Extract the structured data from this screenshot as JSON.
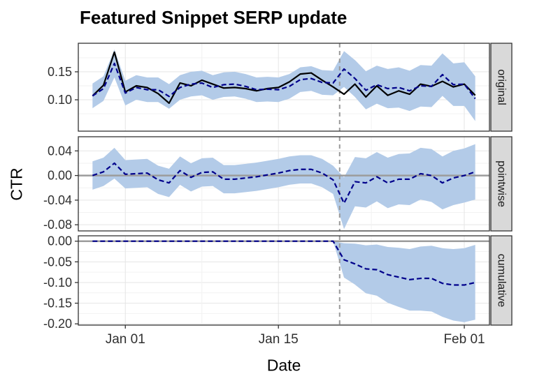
{
  "title": "Featured Snippet SERP update",
  "xlabel": "Date",
  "ylabel": "CTR",
  "colors": {
    "band": "#b3cbe8",
    "observed": "#000000",
    "predicted": "#00008B",
    "zero_line": "#9c9c9c",
    "intervention": "#999999",
    "strip_fill": "#d9d9d9",
    "panel_border": "#333333",
    "grid_major": "#e5e5e5",
    "grid_minor": "#f2f2f2"
  },
  "chart_data": {
    "type": "line",
    "subtype": "causal-impact-faceted",
    "x_dates": [
      "Dec 29",
      "Dec 30",
      "Dec 31",
      "Jan 01",
      "Jan 02",
      "Jan 03",
      "Jan 04",
      "Jan 05",
      "Jan 06",
      "Jan 07",
      "Jan 08",
      "Jan 09",
      "Jan 10",
      "Jan 11",
      "Jan 12",
      "Jan 13",
      "Jan 14",
      "Jan 15",
      "Jan 16",
      "Jan 17",
      "Jan 18",
      "Jan 19",
      "Jan 20",
      "Jan 21",
      "Jan 22",
      "Jan 23",
      "Jan 24",
      "Jan 25",
      "Jan 26",
      "Jan 27",
      "Jan 28",
      "Jan 29",
      "Jan 30",
      "Jan 31",
      "Feb 01",
      "Feb 02"
    ],
    "x_days": [
      0,
      1,
      2,
      3,
      4,
      5,
      6,
      7,
      8,
      9,
      10,
      11,
      12,
      13,
      14,
      15,
      16,
      17,
      18,
      19,
      20,
      21,
      22,
      23,
      24,
      25,
      26,
      27,
      28,
      29,
      30,
      31,
      32,
      33,
      34,
      35
    ],
    "xlim": [
      -1.3,
      36.3
    ],
    "xticks": {
      "labels": [
        "Jan 01",
        "Jan 15",
        "Feb 01"
      ],
      "days": [
        3,
        17,
        34
      ]
    },
    "intervention_day": 22.6,
    "legend": "none",
    "grid": "on",
    "panels": [
      {
        "name": "original",
        "ylim": [
          0.044,
          0.201
        ],
        "ytick_values": [
          0.15,
          0.1
        ],
        "ytick_labels": [
          "0.15",
          "0.10"
        ],
        "zero_line": false,
        "series": [
          {
            "name": "observed",
            "style": "solid",
            "color": "#000000",
            "values": [
              0.107,
              0.126,
              0.185,
              0.114,
              0.125,
              0.122,
              0.111,
              0.094,
              0.13,
              0.125,
              0.135,
              0.128,
              0.121,
              0.122,
              0.12,
              0.116,
              0.12,
              0.122,
              0.132,
              0.146,
              0.148,
              0.135,
              0.123,
              0.11,
              0.128,
              0.105,
              0.125,
              0.108,
              0.116,
              0.11,
              0.128,
              0.124,
              0.133,
              0.123,
              0.128,
              0.108
            ]
          },
          {
            "name": "predicted",
            "style": "dashed",
            "color": "#00008B",
            "values": [
              0.107,
              0.12,
              0.165,
              0.112,
              0.122,
              0.118,
              0.118,
              0.106,
              0.122,
              0.128,
              0.13,
              0.122,
              0.127,
              0.128,
              0.124,
              0.118,
              0.119,
              0.118,
              0.124,
              0.136,
              0.138,
              0.131,
              0.13,
              0.155,
              0.138,
              0.117,
              0.127,
              0.12,
              0.122,
              0.116,
              0.125,
              0.124,
              0.145,
              0.127,
              0.128,
              0.102
            ]
          }
        ],
        "band": {
          "upper": [
            0.129,
            0.142,
            0.19,
            0.134,
            0.144,
            0.14,
            0.14,
            0.128,
            0.144,
            0.15,
            0.152,
            0.144,
            0.149,
            0.15,
            0.146,
            0.14,
            0.141,
            0.14,
            0.146,
            0.158,
            0.16,
            0.153,
            0.152,
            0.187,
            0.171,
            0.151,
            0.161,
            0.155,
            0.158,
            0.152,
            0.162,
            0.161,
            0.183,
            0.165,
            0.167,
            0.142
          ],
          "lower": [
            0.085,
            0.098,
            0.14,
            0.09,
            0.1,
            0.096,
            0.096,
            0.084,
            0.1,
            0.106,
            0.108,
            0.1,
            0.105,
            0.106,
            0.102,
            0.096,
            0.097,
            0.096,
            0.102,
            0.114,
            0.116,
            0.109,
            0.108,
            0.123,
            0.105,
            0.083,
            0.093,
            0.085,
            0.086,
            0.08,
            0.088,
            0.087,
            0.107,
            0.089,
            0.089,
            0.062
          ]
        }
      },
      {
        "name": "pointwise",
        "ylim": [
          -0.09,
          0.063
        ],
        "ytick_values": [
          0.04,
          0.0,
          -0.04,
          -0.08
        ],
        "ytick_labels": [
          "0.04",
          "0.00",
          "-0.04",
          "-0.08"
        ],
        "zero_line": true,
        "series": [
          {
            "name": "pointwise-effect",
            "style": "dashed",
            "color": "#00008B",
            "values": [
              0.0,
              0.006,
              0.02,
              0.002,
              0.003,
              0.004,
              -0.007,
              -0.012,
              0.008,
              -0.003,
              0.005,
              0.006,
              -0.006,
              -0.006,
              -0.004,
              -0.002,
              0.001,
              0.004,
              0.008,
              0.01,
              0.01,
              0.004,
              -0.007,
              -0.045,
              -0.01,
              -0.012,
              -0.002,
              -0.012,
              -0.006,
              -0.006,
              0.003,
              0.0,
              -0.012,
              -0.004,
              0.0,
              0.006
            ]
          }
        ],
        "band": {
          "upper": [
            0.023,
            0.029,
            0.045,
            0.025,
            0.026,
            0.027,
            0.016,
            0.011,
            0.031,
            0.02,
            0.028,
            0.029,
            0.017,
            0.017,
            0.019,
            0.021,
            0.024,
            0.027,
            0.031,
            0.033,
            0.033,
            0.027,
            0.016,
            -0.003,
            0.03,
            0.028,
            0.038,
            0.029,
            0.035,
            0.036,
            0.045,
            0.043,
            0.031,
            0.04,
            0.044,
            0.051
          ],
          "lower": [
            -0.023,
            -0.017,
            -0.005,
            -0.021,
            -0.02,
            -0.019,
            -0.03,
            -0.035,
            -0.015,
            -0.026,
            -0.018,
            -0.017,
            -0.029,
            -0.029,
            -0.027,
            -0.025,
            -0.022,
            -0.019,
            -0.015,
            -0.013,
            -0.013,
            -0.019,
            -0.03,
            -0.087,
            -0.05,
            -0.052,
            -0.042,
            -0.053,
            -0.047,
            -0.048,
            -0.039,
            -0.043,
            -0.055,
            -0.048,
            -0.044,
            -0.039
          ]
        }
      },
      {
        "name": "cumulative",
        "ylim": [
          -0.203,
          0.013
        ],
        "ytick_values": [
          0.0,
          -0.05,
          -0.1,
          -0.15,
          -0.2
        ],
        "ytick_labels": [
          "0.00",
          "-0.05",
          "-0.10",
          "-0.15",
          "-0.20"
        ],
        "zero_line": true,
        "series": [
          {
            "name": "cumulative-effect",
            "style": "dashed",
            "color": "#00008B",
            "values": [
              0,
              0,
              0,
              0,
              0,
              0,
              0,
              0,
              0,
              0,
              0,
              0,
              0,
              0,
              0,
              0,
              0,
              0,
              0,
              0,
              0,
              0,
              0,
              -0.045,
              -0.055,
              -0.067,
              -0.069,
              -0.081,
              -0.087,
              -0.093,
              -0.09,
              -0.09,
              -0.102,
              -0.106,
              -0.106,
              -0.1
            ]
          }
        ],
        "band": {
          "upper": [
            0,
            0,
            0,
            0,
            0,
            0,
            0,
            0,
            0,
            0,
            0,
            0,
            0,
            0,
            0,
            0,
            0,
            0,
            0,
            0,
            0,
            0,
            0,
            -0.005,
            -0.006,
            -0.01,
            -0.008,
            -0.014,
            -0.016,
            -0.019,
            -0.013,
            -0.011,
            -0.017,
            -0.019,
            -0.017,
            -0.009
          ],
          "lower": [
            0,
            0,
            0,
            0,
            0,
            0,
            0,
            0,
            0,
            0,
            0,
            0,
            0,
            0,
            0,
            0,
            0,
            0,
            0,
            0,
            0,
            0,
            0,
            -0.088,
            -0.105,
            -0.126,
            -0.132,
            -0.149,
            -0.159,
            -0.168,
            -0.168,
            -0.17,
            -0.183,
            -0.192,
            -0.196,
            -0.19
          ]
        }
      }
    ]
  }
}
